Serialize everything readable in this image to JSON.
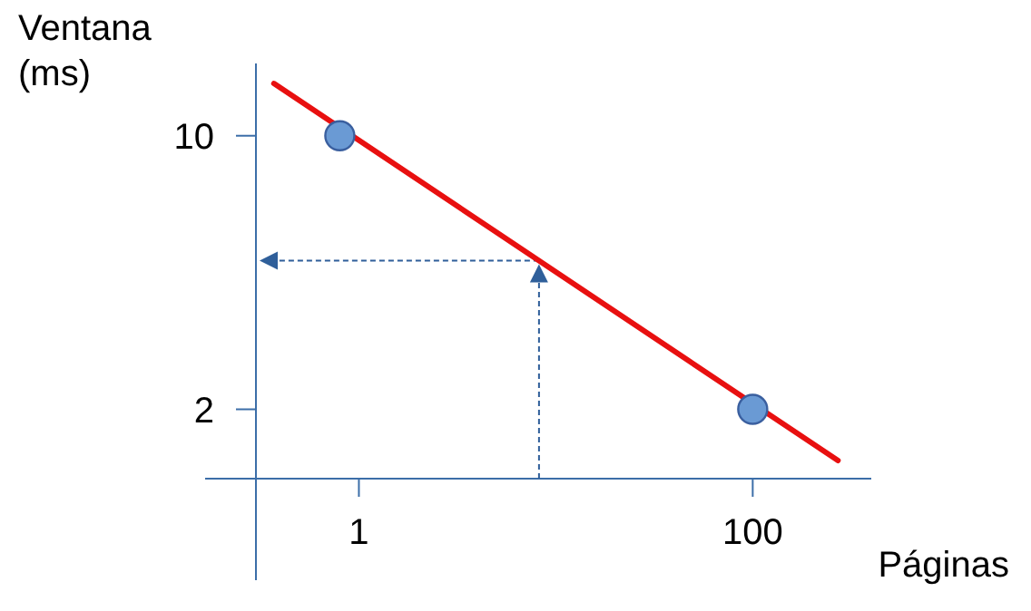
{
  "chart_data": {
    "type": "scatter",
    "xlabel": "Páginas",
    "ylabel": "Ventana\n(ms)",
    "log": "xy",
    "xlim": [
      0.3,
      400
    ],
    "ylim": [
      1.33,
      15.3
    ],
    "xticks": [
      1,
      100
    ],
    "yticks": [
      10,
      2
    ],
    "grid": false,
    "series": [
      {
        "type": "line",
        "x": [
          0.37,
          271
        ],
        "values": [
          13.6,
          1.48
        ],
        "color": "#e81010"
      },
      {
        "marker": "circle",
        "x": [
          0.8,
          100
        ],
        "values": [
          10,
          2
        ],
        "color": "#6a9ad4"
      }
    ]
  }
}
